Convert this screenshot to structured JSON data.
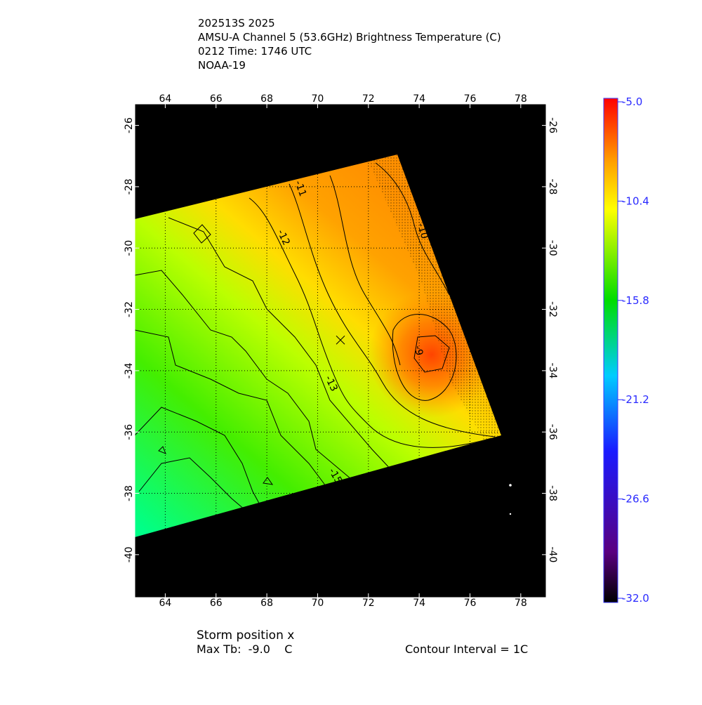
{
  "header": {
    "lines": [
      "202513S 2025",
      "AMSU-A Channel 5 (53.6GHz) Brightness Temperature (C)",
      "0212 Time: 1746 UTC",
      "NOAA-19"
    ]
  },
  "map": {
    "type": "map",
    "xlim": [
      62.8,
      79
    ],
    "ylim": [
      -41.4,
      -25.3
    ],
    "xticks": [
      64,
      66,
      68,
      70,
      72,
      74,
      76,
      78
    ],
    "yticks": [
      -26,
      -28,
      -30,
      -32,
      -34,
      -36,
      -38,
      -40
    ],
    "grid": true,
    "storm_position": {
      "lon": 70.9,
      "lat": -33.0
    },
    "contour_labels": [
      "-11",
      "-12",
      "-13",
      "-15",
      "-10",
      "-9"
    ]
  },
  "colorbar": {
    "lim": [
      -32,
      -5
    ],
    "ticks": [
      {
        "value": -5,
        "label": "-5.0"
      },
      -10.4,
      -15.8,
      -21.2,
      -26.6,
      {
        "value": -32,
        "label": "-32.0"
      }
    ]
  },
  "footer": {
    "storm": "Storm position x",
    "max_tb": "Max Tb:  -9.0    C",
    "interval": "Contour Interval = 1C"
  }
}
